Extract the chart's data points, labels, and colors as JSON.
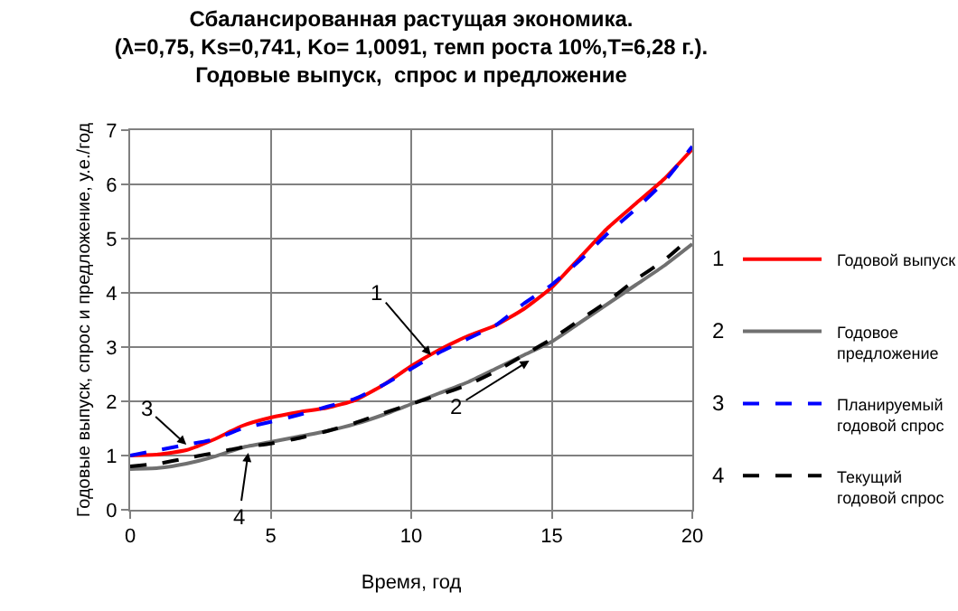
{
  "chart_data": {
    "type": "line",
    "title": "Сбалансированная растущая экономика.\n(λ=0,75, Ks=0,741, Ko= 1,0091, темп роста 10%,T=6,28 г.).\nГодовые выпуск,  спрос и предложение",
    "xlabel": "Время, год",
    "ylabel": "Годовые выпуск, спрос и предложение, у.е./год",
    "x": [
      0,
      1,
      2,
      3,
      4,
      5,
      6,
      7,
      8,
      9,
      10,
      11,
      12,
      13,
      14,
      15,
      16,
      17,
      18,
      19,
      20
    ],
    "series": [
      {
        "name": "Годовой выпуск",
        "color": "#ff0000",
        "line_style": "solid",
        "values": [
          1.0,
          1.02,
          1.1,
          1.3,
          1.55,
          1.7,
          1.8,
          1.88,
          2.02,
          2.3,
          2.65,
          2.95,
          3.2,
          3.4,
          3.7,
          4.1,
          4.65,
          5.2,
          5.65,
          6.1,
          6.65
        ]
      },
      {
        "name": "Годовое предложение",
        "color": "#707070",
        "line_style": "solid",
        "values": [
          0.75,
          0.77,
          0.85,
          0.98,
          1.15,
          1.25,
          1.35,
          1.45,
          1.58,
          1.75,
          1.95,
          2.15,
          2.35,
          2.6,
          2.85,
          3.1,
          3.45,
          3.8,
          4.15,
          4.5,
          4.9
        ]
      },
      {
        "name": "Планируемый годовой спрос",
        "color": "#0000ff",
        "line_style": "dashed",
        "values": [
          1.0,
          1.1,
          1.2,
          1.3,
          1.5,
          1.62,
          1.75,
          1.9,
          2.05,
          2.3,
          2.6,
          2.9,
          3.15,
          3.4,
          3.8,
          4.15,
          4.6,
          5.1,
          5.55,
          6.05,
          6.7
        ]
      },
      {
        "name": "Текущий годовой спрос",
        "color": "#000000",
        "line_style": "dashed",
        "values": [
          0.8,
          0.85,
          0.95,
          1.05,
          1.15,
          1.22,
          1.32,
          1.45,
          1.6,
          1.78,
          1.95,
          2.12,
          2.3,
          2.55,
          2.85,
          3.15,
          3.5,
          3.85,
          4.25,
          4.6,
          5.05
        ]
      }
    ],
    "annotations": [
      {
        "text": "1",
        "x": 10.7,
        "y": 2.85
      },
      {
        "text": "2",
        "x": 14.2,
        "y": 2.75
      },
      {
        "text": "3",
        "x": 2.0,
        "y": 1.2
      },
      {
        "text": "4",
        "x": 4.2,
        "y": 1.05
      },
      "1",
      "2",
      "3",
      "4"
    ],
    "xlim": [
      0,
      20
    ],
    "xticks": [
      0,
      5,
      10,
      15,
      20
    ],
    "ylim": [
      0,
      7
    ],
    "yticks": [
      0,
      1,
      2,
      3,
      4,
      5,
      6,
      7
    ],
    "grid": true,
    "legend": "right",
    "marker": "none"
  }
}
